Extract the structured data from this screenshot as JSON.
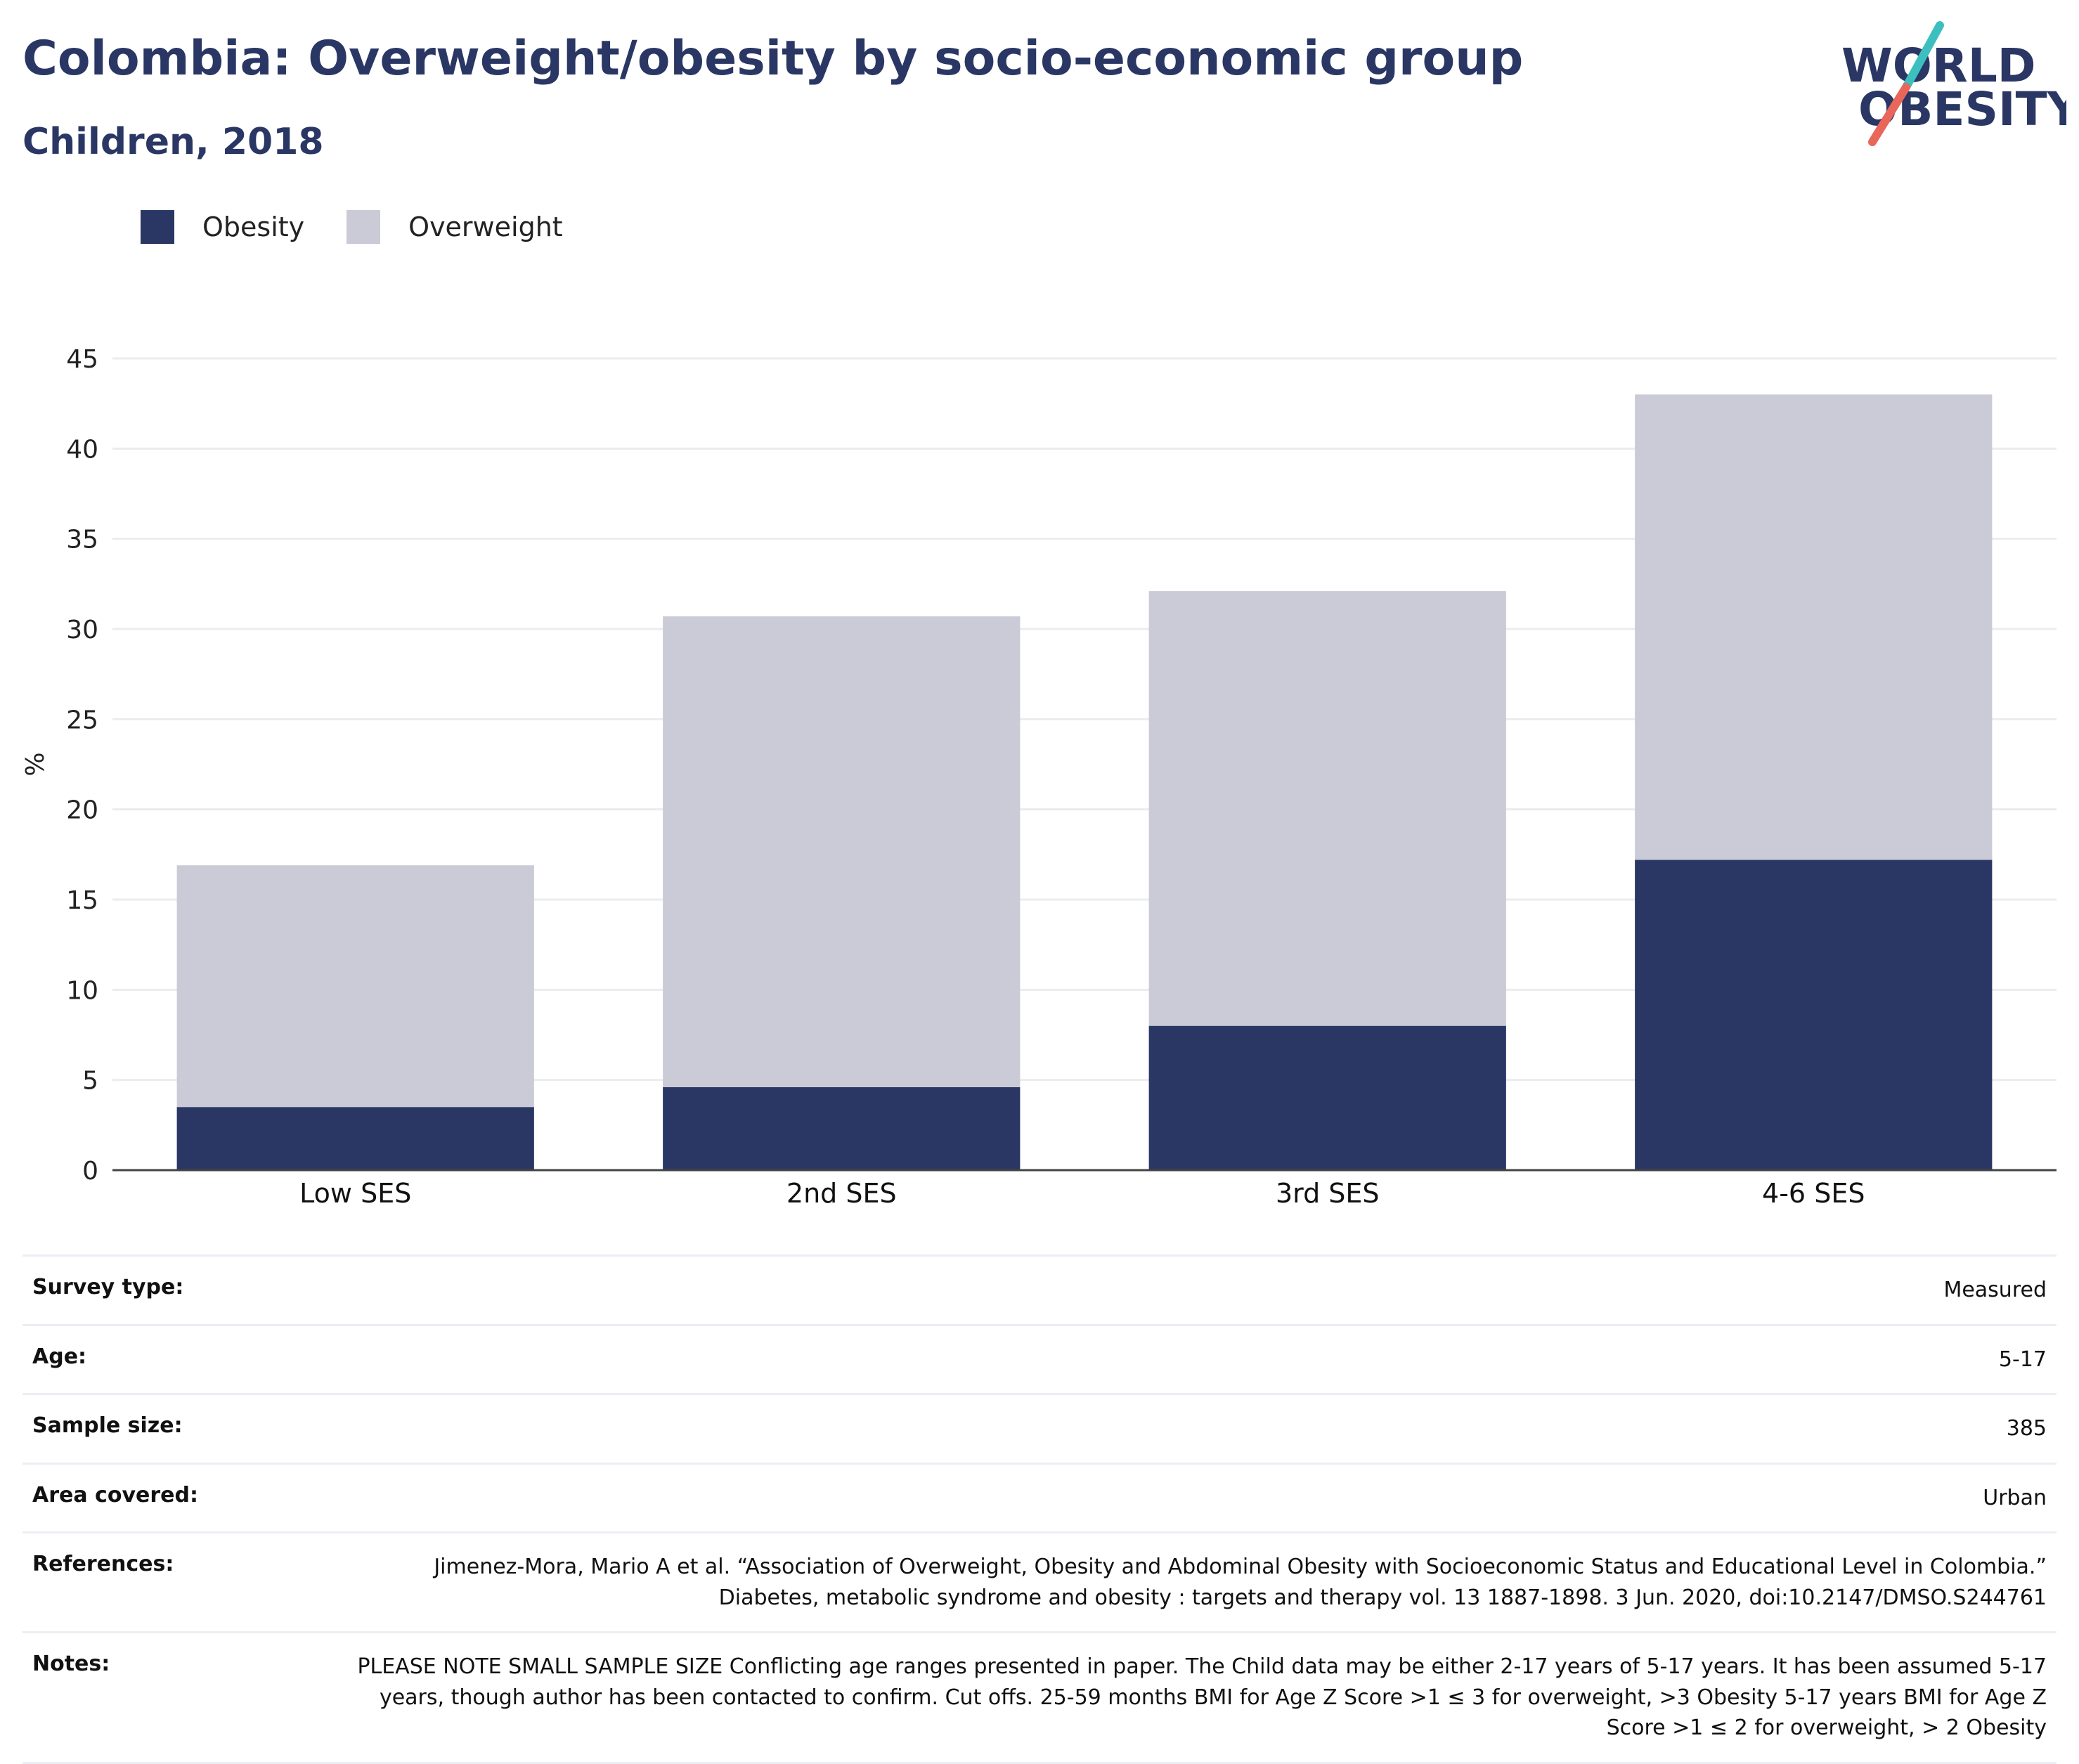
{
  "header": {
    "title": "Colombia: Overweight/obesity by socio-economic group",
    "subtitle": "Children, 2018"
  },
  "logo": {
    "line1": "WORLD",
    "line2": "OBESITY",
    "colors": {
      "text": "#2a3764",
      "slash_teal": "#3dbfbf",
      "slash_red": "#e8675a"
    }
  },
  "legend": [
    {
      "label": "Obesity",
      "color": "#2a3764"
    },
    {
      "label": "Overweight",
      "color": "#cacbd6"
    }
  ],
  "chart_data": {
    "type": "bar",
    "stacked": true,
    "categories": [
      "Low SES",
      "2nd SES",
      "3rd SES",
      "4-6 SES"
    ],
    "series": [
      {
        "name": "Obesity",
        "values": [
          3.5,
          4.6,
          8.0,
          17.2
        ],
        "color": "#2a3764"
      },
      {
        "name": "Overweight",
        "values": [
          13.4,
          26.1,
          24.1,
          25.8
        ],
        "color": "#cacbd6"
      }
    ],
    "ylabel": "%",
    "ylim": [
      0,
      45
    ],
    "yticks": [
      0,
      5,
      10,
      15,
      20,
      25,
      30,
      35,
      40,
      45
    ],
    "grid": true,
    "legend_position": "top-left"
  },
  "info": [
    {
      "label": "Survey type:",
      "value": "Measured"
    },
    {
      "label": "Age:",
      "value": "5-17"
    },
    {
      "label": "Sample size:",
      "value": "385"
    },
    {
      "label": "Area covered:",
      "value": "Urban"
    },
    {
      "label": "References:",
      "value": "Jimenez-Mora, Mario A et al. “Association of Overweight, Obesity and Abdominal Obesity with Socioeconomic Status and Educational Level in Colombia.” Diabetes, metabolic syndrome and obesity : targets and therapy vol. 13 1887-1898. 3 Jun. 2020, doi:10.2147/DMSO.S244761"
    },
    {
      "label": "Notes:",
      "value": "PLEASE NOTE SMALL SAMPLE SIZE Conflicting age ranges presented in paper. The Child data may be either 2-17 years of 5-17 years. It has been assumed 5-17 years, though author has been contacted to confirm. Cut offs. 25-59 months BMI for Age Z Score >1 ≤ 3 for overweight, >3 Obesity 5-17 years BMI for Age Z Score >1 ≤ 2 for overweight, > 2 Obesity"
    }
  ]
}
